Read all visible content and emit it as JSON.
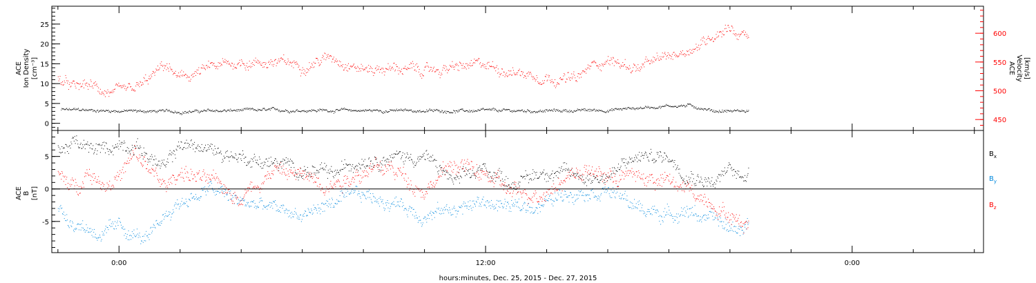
{
  "chart_data": [
    {
      "type": "scatter",
      "panel": "top",
      "left_axis": {
        "label_lines": [
          "ACE",
          "Ion Density",
          "[cm⁻³]"
        ],
        "ylim": [
          -1.8,
          29.5
        ],
        "ticks": [
          0,
          5,
          10,
          15,
          20,
          25
        ],
        "color": "#000000"
      },
      "right_axis": {
        "label_lines": [
          "ACE",
          "Velocity",
          "[km/s]"
        ],
        "ylim": [
          431,
          647
        ],
        "ticks": [
          450,
          500,
          550,
          600
        ],
        "color": "#ff0000"
      },
      "series": [
        {
          "key": "density",
          "axis": "left",
          "color": "#000000",
          "profile_x": [
            -1.9,
            0,
            2,
            4,
            6,
            8,
            10,
            12,
            14,
            16,
            18,
            18.7,
            19.5,
            20.6
          ],
          "profile_y": [
            3.5,
            3.2,
            3.0,
            3.3,
            3.4,
            3.3,
            3.2,
            3.2,
            3.2,
            3.4,
            4.5,
            4.5,
            3.2,
            3.2
          ],
          "jitter": 0.5
        },
        {
          "key": "velocity",
          "axis": "right",
          "color": "#ff0000",
          "profile_x": [
            -2,
            -1.5,
            -1,
            -0.5,
            0,
            0.5,
            1,
            1.5,
            2,
            3,
            4,
            5,
            6,
            7,
            8,
            9,
            10,
            11,
            12,
            13,
            14,
            15,
            15.5,
            16,
            16.5,
            17,
            18,
            18.5,
            19,
            19.5,
            20,
            20.2,
            20.5,
            20.6
          ],
          "profile_y": [
            520,
            505,
            510,
            500,
            495,
            500,
            520,
            545,
            520,
            540,
            550,
            550,
            545,
            560,
            538,
            540,
            535,
            540,
            545,
            533,
            525,
            520,
            545,
            555,
            545,
            540,
            560,
            570,
            580,
            600,
            615,
            600,
            597,
            590
          ],
          "jitter": 12
        }
      ]
    },
    {
      "type": "scatter",
      "panel": "bottom",
      "left_axis": {
        "label_lines": [
          "ACE",
          "B",
          "[nT]"
        ],
        "ylim": [
          -9.8,
          9.0
        ],
        "ticks": [
          -5,
          0,
          5
        ]
      },
      "zero_line": true,
      "legend": [
        {
          "label": "Bx",
          "base": "B",
          "sub": "x",
          "color": "#000000"
        },
        {
          "label": "By",
          "base": "B",
          "sub": "y",
          "color": "#0088dd"
        },
        {
          "label": "Bz",
          "base": "B",
          "sub": "z",
          "color": "#ff0000"
        }
      ],
      "legend_placement": "right",
      "series": [
        {
          "key": "Bx",
          "color": "#000000",
          "profile_x": [
            -2,
            -1.5,
            -1,
            -0.5,
            0,
            0.5,
            1,
            1.5,
            2,
            3,
            4,
            5,
            6,
            7,
            8,
            9,
            10,
            11,
            12,
            13,
            14,
            15,
            16,
            17,
            18,
            18.5,
            19,
            19.5,
            20,
            20.3,
            20.6
          ],
          "profile_y": [
            6,
            7,
            6,
            6,
            7,
            7,
            5,
            3,
            7,
            6,
            5,
            4,
            3,
            2,
            5,
            5,
            5,
            1,
            3,
            1,
            3,
            2,
            2,
            5,
            5,
            3,
            2,
            1,
            3,
            2,
            3
          ],
          "jitter": 1.4
        },
        {
          "key": "By",
          "color": "#0088dd",
          "profile_x": [
            -2,
            -1.5,
            -1,
            -0.5,
            0,
            0.5,
            1,
            1.5,
            2,
            3,
            4,
            5,
            6,
            7,
            8,
            9,
            10,
            11,
            12,
            13,
            14,
            15,
            16,
            17,
            18,
            18.5,
            19,
            19.5,
            20,
            20.3,
            20.6
          ],
          "profile_y": [
            -3,
            -5,
            -6,
            -7,
            -6,
            -7,
            -8,
            -4,
            -2,
            0,
            -2,
            -3,
            -4,
            -2,
            -1,
            -2,
            -4,
            -3,
            -2,
            -3,
            -2,
            0,
            0,
            -3,
            -4,
            -3,
            -4,
            -5,
            -6,
            -6,
            -5
          ],
          "jitter": 1.4
        },
        {
          "key": "Bz",
          "color": "#ff0000",
          "profile_x": [
            -2,
            -1.5,
            -1,
            -0.5,
            0,
            0.5,
            1,
            1.5,
            2,
            3,
            4,
            5,
            6,
            7,
            8,
            9,
            10,
            11,
            12,
            13,
            14,
            15,
            16,
            17,
            18,
            18.5,
            19,
            19.5,
            20,
            20.3,
            20.6
          ],
          "profile_y": [
            2,
            0,
            3,
            1,
            2,
            5,
            3,
            0,
            3,
            1,
            -1,
            3,
            2,
            1,
            3,
            3,
            0,
            4,
            2,
            -1,
            0,
            3,
            2,
            2,
            1,
            0,
            -1,
            -2,
            -4,
            -5,
            -5
          ],
          "jitter": 1.6
        }
      ]
    }
  ],
  "x_axis": {
    "label": "hours:minutes, Dec. 25, 2015 - Dec. 27, 2015",
    "xlim_hours": [
      -2.2,
      28.3
    ],
    "major_ticks": [
      {
        "value": 0,
        "label": "0:00"
      },
      {
        "value": 12,
        "label": "12:00"
      },
      {
        "value": 24,
        "label": "0:00"
      }
    ],
    "minor_step_hours": 2
  }
}
